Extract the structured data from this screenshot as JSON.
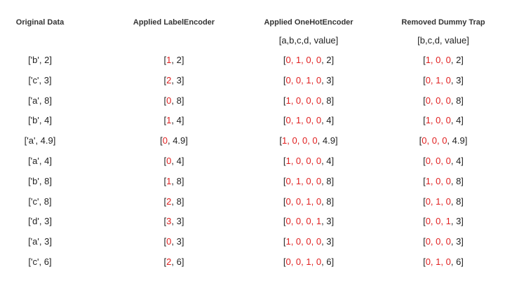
{
  "colors": {
    "text": "#222222",
    "highlight": "#e02020"
  },
  "headers": [
    "Original Data",
    "Applied LabelEncoder",
    "Applied OneHotEncoder",
    "Removed Dummy Trap"
  ],
  "subheaders": [
    "",
    "",
    "[a,b,c,d, value]",
    "[b,c,d, value]"
  ],
  "rows": [
    {
      "original": "['b', 2]",
      "label": {
        "code": "1",
        "value": "2"
      },
      "onehot": {
        "bits": "0, 1, 0, 0",
        "value": "2"
      },
      "dummy": {
        "bits": "1, 0, 0",
        "value": "2"
      }
    },
    {
      "original": "['c', 3]",
      "label": {
        "code": "2",
        "value": "3"
      },
      "onehot": {
        "bits": "0, 0, 1, 0",
        "value": "3"
      },
      "dummy": {
        "bits": "0, 1, 0",
        "value": "3"
      }
    },
    {
      "original": "['a', 8]",
      "label": {
        "code": "0",
        "value": "8"
      },
      "onehot": {
        "bits": "1, 0, 0, 0",
        "value": "8"
      },
      "dummy": {
        "bits": "0, 0, 0",
        "value": "8"
      }
    },
    {
      "original": "['b', 4]",
      "label": {
        "code": "1",
        "value": "4"
      },
      "onehot": {
        "bits": "0, 1, 0, 0",
        "value": "4"
      },
      "dummy": {
        "bits": "1, 0, 0",
        "value": "4"
      }
    },
    {
      "original": "['a', 4.9]",
      "label": {
        "code": "0",
        "value": "4.9"
      },
      "onehot": {
        "bits": "1, 0, 0, 0",
        "value": "4.9"
      },
      "dummy": {
        "bits": "0, 0, 0",
        "value": "4.9"
      }
    },
    {
      "original": "['a', 4]",
      "label": {
        "code": "0",
        "value": "4"
      },
      "onehot": {
        "bits": "1, 0, 0, 0",
        "value": "4"
      },
      "dummy": {
        "bits": "0, 0, 0",
        "value": "4"
      }
    },
    {
      "original": "['b', 8]",
      "label": {
        "code": "1",
        "value": "8"
      },
      "onehot": {
        "bits": "0, 1, 0, 0",
        "value": "8"
      },
      "dummy": {
        "bits": "1, 0, 0",
        "value": "8"
      }
    },
    {
      "original": "['c', 8]",
      "label": {
        "code": "2",
        "value": "8"
      },
      "onehot": {
        "bits": "0, 0, 1, 0",
        "value": "8"
      },
      "dummy": {
        "bits": "0, 1, 0",
        "value": "8"
      }
    },
    {
      "original": "['d', 3]",
      "label": {
        "code": "3",
        "value": "3"
      },
      "onehot": {
        "bits": "0, 0, 0, 1",
        "value": "3"
      },
      "dummy": {
        "bits": "0, 0, 1",
        "value": "3"
      }
    },
    {
      "original": "['a', 3]",
      "label": {
        "code": "0",
        "value": "3"
      },
      "onehot": {
        "bits": "1, 0, 0, 0",
        "value": "3"
      },
      "dummy": {
        "bits": "0, 0, 0",
        "value": "3"
      }
    },
    {
      "original": "['c', 6]",
      "label": {
        "code": "2",
        "value": "6"
      },
      "onehot": {
        "bits": "0, 0, 1, 0",
        "value": "6"
      },
      "dummy": {
        "bits": "0, 1, 0",
        "value": "6"
      }
    }
  ]
}
